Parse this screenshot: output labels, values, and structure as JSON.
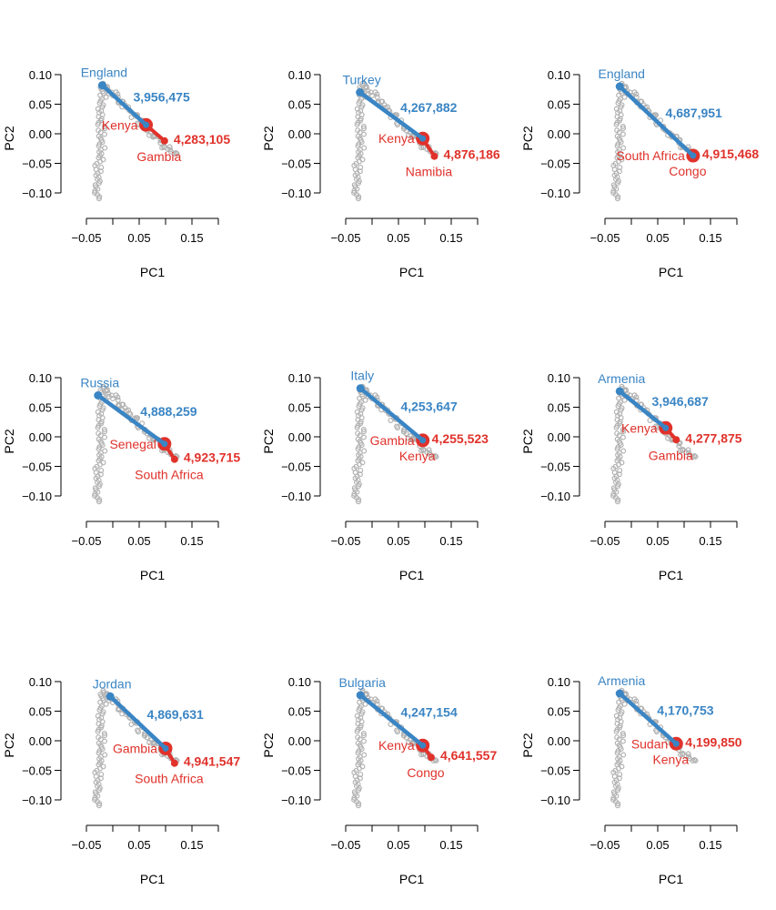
{
  "colors": {
    "blue": "#3a85c4",
    "red": "#e0322b",
    "grey": "#b3b3b3"
  },
  "chart_data": [
    {
      "type": "scatter",
      "xlabel": "PC1",
      "ylabel": "PC2",
      "xlim": [
        -0.05,
        0.2
      ],
      "ylim": [
        -0.1,
        0.1
      ],
      "xticks": [
        "−0.05",
        "0.05",
        "0.15"
      ],
      "yticks": [
        "0.10",
        "0.05",
        "0.00",
        "−0.05",
        "−0.10"
      ],
      "source": {
        "label": "England",
        "x": -0.02,
        "y": 0.082
      },
      "mid": {
        "label": "Kenya",
        "x": 0.063,
        "y": 0.015,
        "count": "3,956,475"
      },
      "dest": {
        "label": "Gambia",
        "x": 0.098,
        "y": -0.012,
        "count": "4,283,105"
      }
    },
    {
      "type": "scatter",
      "xlabel": "PC1",
      "ylabel": "PC2",
      "xlim": [
        -0.05,
        0.2
      ],
      "ylim": [
        -0.1,
        0.1
      ],
      "xticks": [
        "−0.05",
        "0.05",
        "0.15"
      ],
      "yticks": [
        "0.10",
        "0.05",
        "0.00",
        "−0.05",
        "−0.10"
      ],
      "source": {
        "label": "Turkey",
        "x": -0.023,
        "y": 0.07
      },
      "mid": {
        "label": "Kenya",
        "x": 0.096,
        "y": -0.008,
        "count": "4,267,882"
      },
      "dest": {
        "label": "Namibia",
        "x": 0.118,
        "y": -0.038,
        "count": "4,876,186"
      }
    },
    {
      "type": "scatter",
      "xlabel": "PC1",
      "ylabel": "PC2",
      "xlim": [
        -0.05,
        0.2
      ],
      "ylim": [
        -0.1,
        0.1
      ],
      "xticks": [
        "−0.05",
        "0.05",
        "0.15"
      ],
      "yticks": [
        "0.10",
        "0.05",
        "0.00",
        "−0.05",
        "−0.10"
      ],
      "source": {
        "label": "England",
        "x": -0.022,
        "y": 0.08
      },
      "mid": {
        "label": "South Africa",
        "x": 0.117,
        "y": -0.037,
        "count": "4,687,951"
      },
      "dest": {
        "label": "Congo",
        "x": 0.117,
        "y": -0.037,
        "count": "4,915,468"
      }
    },
    {
      "type": "scatter",
      "xlabel": "PC1",
      "ylabel": "PC2",
      "xlim": [
        -0.05,
        0.2
      ],
      "ylim": [
        -0.1,
        0.1
      ],
      "xticks": [
        "−0.05",
        "0.05",
        "0.15"
      ],
      "yticks": [
        "0.10",
        "0.05",
        "0.00",
        "−0.05",
        "−0.10"
      ],
      "source": {
        "label": "Russia",
        "x": -0.028,
        "y": 0.07
      },
      "mid": {
        "label": "Senegal",
        "x": 0.098,
        "y": -0.012,
        "count": "4,888,259"
      },
      "dest": {
        "label": "South Africa",
        "x": 0.117,
        "y": -0.038,
        "count": "4,923,715"
      }
    },
    {
      "type": "scatter",
      "xlabel": "PC1",
      "ylabel": "PC2",
      "xlim": [
        -0.05,
        0.2
      ],
      "ylim": [
        -0.1,
        0.1
      ],
      "xticks": [
        "−0.05",
        "0.05",
        "0.15"
      ],
      "yticks": [
        "0.10",
        "0.05",
        "0.00",
        "−0.05",
        "−0.10"
      ],
      "source": {
        "label": "Italy",
        "x": -0.022,
        "y": 0.082
      },
      "mid": {
        "label": "Gambia",
        "x": 0.096,
        "y": -0.006,
        "count": "4,253,647"
      },
      "dest": {
        "label": "Kenya",
        "x": 0.096,
        "y": -0.006,
        "count": "4,255,523"
      }
    },
    {
      "type": "scatter",
      "xlabel": "PC1",
      "ylabel": "PC2",
      "xlim": [
        -0.05,
        0.2
      ],
      "ylim": [
        -0.1,
        0.1
      ],
      "xticks": [
        "−0.05",
        "0.05",
        "0.15"
      ],
      "yticks": [
        "0.10",
        "0.05",
        "0.00",
        "−0.05",
        "−0.10"
      ],
      "source": {
        "label": "Armenia",
        "x": -0.022,
        "y": 0.077
      },
      "mid": {
        "label": "Kenya",
        "x": 0.065,
        "y": 0.015,
        "count": "3,946,687"
      },
      "dest": {
        "label": "Gambia",
        "x": 0.085,
        "y": -0.005,
        "count": "4,277,875"
      }
    },
    {
      "type": "scatter",
      "xlabel": "PC1",
      "ylabel": "PC2",
      "xlim": [
        -0.05,
        0.2
      ],
      "ylim": [
        -0.1,
        0.1
      ],
      "xticks": [
        "−0.05",
        "0.05",
        "0.15"
      ],
      "yticks": [
        "0.10",
        "0.05",
        "0.00",
        "−0.05",
        "−0.10"
      ],
      "source": {
        "label": "Jordan",
        "x": -0.005,
        "y": 0.075
      },
      "mid": {
        "label": "Gambia",
        "x": 0.1,
        "y": -0.013,
        "count": "4,869,631"
      },
      "dest": {
        "label": "South Africa",
        "x": 0.117,
        "y": -0.038,
        "count": "4,941,547"
      }
    },
    {
      "type": "scatter",
      "xlabel": "PC1",
      "ylabel": "PC2",
      "xlim": [
        -0.05,
        0.2
      ],
      "ylim": [
        -0.1,
        0.1
      ],
      "xticks": [
        "−0.05",
        "0.05",
        "0.15"
      ],
      "yticks": [
        "0.10",
        "0.05",
        "0.00",
        "−0.05",
        "−0.10"
      ],
      "source": {
        "label": "Bulgaria",
        "x": -0.022,
        "y": 0.077
      },
      "mid": {
        "label": "Kenya",
        "x": 0.096,
        "y": -0.008,
        "count": "4,247,154"
      },
      "dest": {
        "label": "Congo",
        "x": 0.112,
        "y": -0.028,
        "count": "4,641,557"
      }
    },
    {
      "type": "scatter",
      "xlabel": "PC1",
      "ylabel": "PC2",
      "xlim": [
        -0.05,
        0.2
      ],
      "ylim": [
        -0.1,
        0.1
      ],
      "xticks": [
        "−0.05",
        "0.05",
        "0.15"
      ],
      "yticks": [
        "0.10",
        "0.05",
        "0.00",
        "−0.05",
        "−0.10"
      ],
      "source": {
        "label": "Armenia",
        "x": -0.022,
        "y": 0.08
      },
      "mid": {
        "label": "Sudan",
        "x": 0.085,
        "y": -0.005,
        "count": "4,170,753"
      },
      "dest": {
        "label": "Kenya",
        "x": 0.085,
        "y": -0.005,
        "count": "4,199,850"
      }
    }
  ]
}
